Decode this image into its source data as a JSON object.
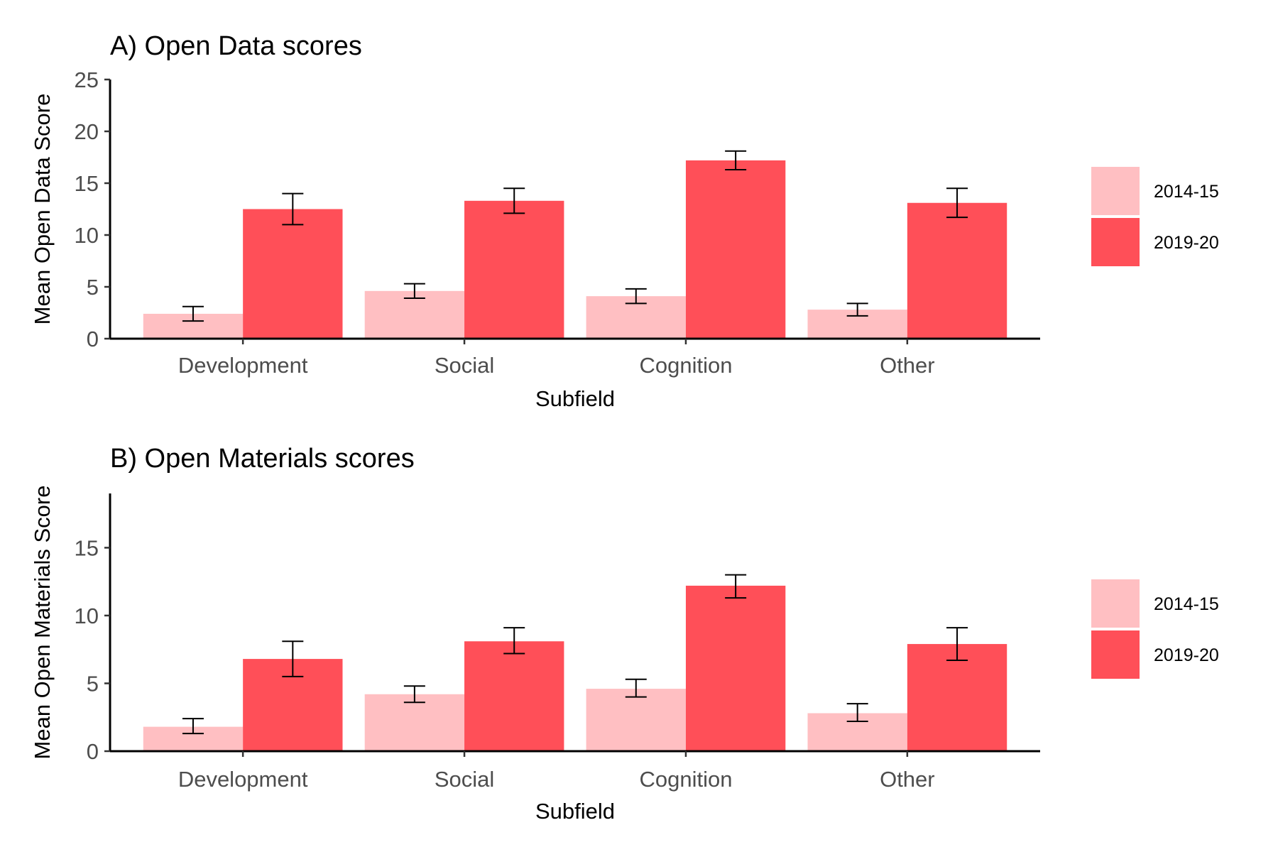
{
  "chart_data": [
    {
      "type": "bar",
      "title": "A) Open Data scores",
      "xlabel": "Subfield",
      "ylabel": "Mean Open Data Score",
      "categories": [
        "Development",
        "Social",
        "Cognition",
        "Other"
      ],
      "ylim": [
        0,
        25
      ],
      "yticks": [
        0,
        5,
        10,
        15,
        20,
        25
      ],
      "grid": false,
      "legend_position": "right",
      "series": [
        {
          "name": "2014-15",
          "color": "#ffbfc2",
          "values": [
            2.4,
            4.6,
            4.1,
            2.8
          ],
          "error_low": [
            1.7,
            3.9,
            3.4,
            2.2
          ],
          "error_high": [
            3.1,
            5.3,
            4.8,
            3.4
          ]
        },
        {
          "name": "2019-20",
          "color": "#ff4f58",
          "values": [
            12.5,
            13.3,
            17.2,
            13.1
          ],
          "error_low": [
            11.0,
            12.1,
            16.3,
            11.7
          ],
          "error_high": [
            14.0,
            14.5,
            18.1,
            14.5
          ]
        }
      ]
    },
    {
      "type": "bar",
      "title": "B) Open Materials scores",
      "xlabel": "Subfield",
      "ylabel": "Mean Open Materials Score",
      "categories": [
        "Development",
        "Social",
        "Cognition",
        "Other"
      ],
      "ylim": [
        0,
        19
      ],
      "yticks": [
        0,
        5,
        10,
        15
      ],
      "grid": false,
      "legend_position": "right",
      "series": [
        {
          "name": "2014-15",
          "color": "#ffbfc2",
          "values": [
            1.8,
            4.2,
            4.6,
            2.8
          ],
          "error_low": [
            1.3,
            3.6,
            4.0,
            2.2
          ],
          "error_high": [
            2.4,
            4.8,
            5.3,
            3.5
          ]
        },
        {
          "name": "2019-20",
          "color": "#ff4f58",
          "values": [
            6.8,
            8.1,
            12.2,
            7.9
          ],
          "error_low": [
            5.5,
            7.2,
            11.3,
            6.7
          ],
          "error_high": [
            8.1,
            9.1,
            13.0,
            9.1
          ]
        }
      ]
    }
  ]
}
